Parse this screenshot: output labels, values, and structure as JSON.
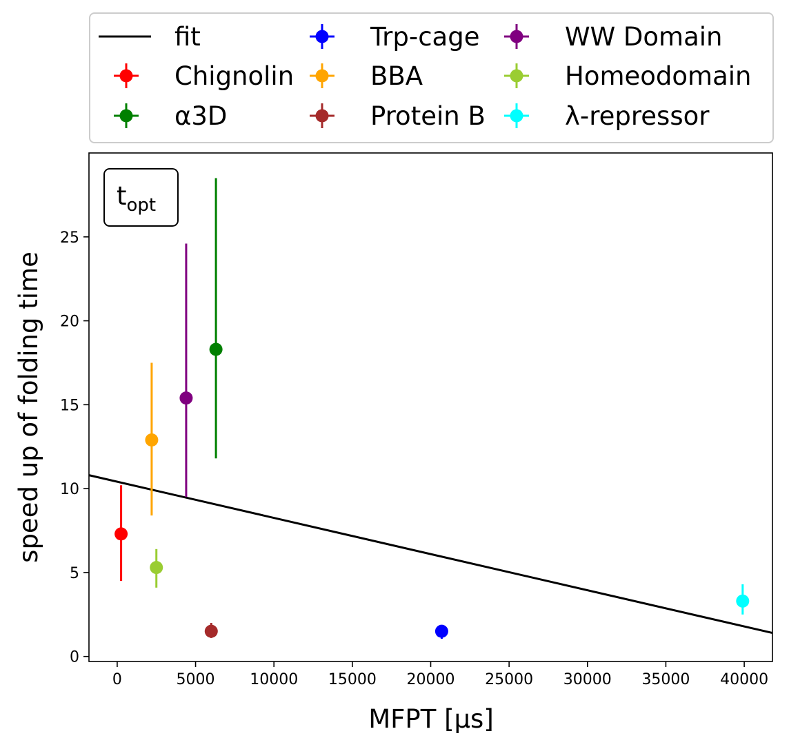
{
  "chart_data": {
    "type": "scatter",
    "xlabel": "MFPT [μs]",
    "ylabel": "speed up of folding time",
    "annotation": {
      "main": "t",
      "sub": "opt"
    },
    "xlim": [
      -1800,
      41800
    ],
    "ylim": [
      -0.3,
      30.0
    ],
    "xticks": [
      0,
      5000,
      10000,
      15000,
      20000,
      25000,
      30000,
      35000,
      40000
    ],
    "yticks": [
      0,
      5,
      10,
      15,
      20,
      25
    ],
    "grid": false,
    "legend_position": "above plot, 3 columns",
    "fit": {
      "name": "fit",
      "color": "#000000",
      "x": [
        -1800,
        41800
      ],
      "y": [
        10.8,
        1.4
      ]
    },
    "series": [
      {
        "name": "Chignolin",
        "color": "#ff0000",
        "x": 250,
        "y": 7.3,
        "ylo": 4.5,
        "yhi": 10.2
      },
      {
        "name": "α3D",
        "color": "#008000",
        "x": 6300,
        "y": 18.3,
        "ylo": 11.8,
        "yhi": 28.5
      },
      {
        "name": "Trp-cage",
        "color": "#0000ff",
        "x": 20700,
        "y": 1.5,
        "ylo": 1.05,
        "yhi": 1.85
      },
      {
        "name": "BBA",
        "color": "#ffa500",
        "x": 2200,
        "y": 12.9,
        "ylo": 8.4,
        "yhi": 17.5
      },
      {
        "name": "Protein B",
        "color": "#a52a2a",
        "x": 6000,
        "y": 1.5,
        "ylo": 1.1,
        "yhi": 2.0
      },
      {
        "name": "WW Domain",
        "color": "#800080",
        "x": 4400,
        "y": 15.4,
        "ylo": 9.5,
        "yhi": 24.6
      },
      {
        "name": "Homeodomain",
        "color": "#9acd32",
        "x": 2500,
        "y": 5.3,
        "ylo": 4.1,
        "yhi": 6.4
      },
      {
        "name": "λ-repressor",
        "color": "#00ffff",
        "x": 39900,
        "y": 3.3,
        "ylo": 2.5,
        "yhi": 4.3
      }
    ]
  }
}
